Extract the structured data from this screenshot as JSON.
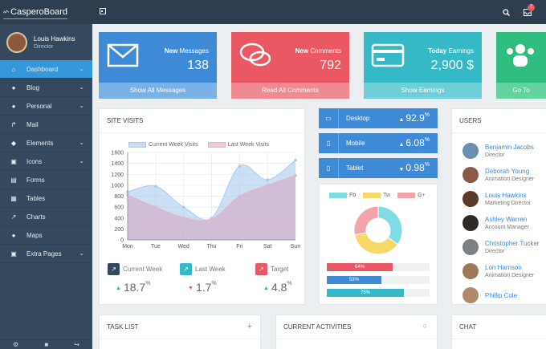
{
  "app": {
    "logo": "CasperoBoard",
    "notif_count": "7"
  },
  "profile": {
    "name": "Louis Hawkins",
    "role": "Director"
  },
  "nav": [
    {
      "label": "Dashboard",
      "icon": "home-icon",
      "glyph": "⌂",
      "chev": true,
      "active": true
    },
    {
      "label": "Blog",
      "icon": "comment-icon",
      "glyph": "●",
      "chev": true
    },
    {
      "label": "Personal",
      "icon": "user-icon",
      "glyph": "●",
      "chev": true
    },
    {
      "label": "Mail",
      "icon": "share-icon",
      "glyph": "↱",
      "chev": false
    },
    {
      "label": "Elements",
      "icon": "diamond-icon",
      "glyph": "◆",
      "chev": true
    },
    {
      "label": "Icons",
      "icon": "icons-icon",
      "glyph": "▣",
      "chev": true
    },
    {
      "label": "Forms",
      "icon": "forms-icon",
      "glyph": "▤",
      "chev": false
    },
    {
      "label": "Tables",
      "icon": "table-icon",
      "glyph": "▦",
      "chev": false
    },
    {
      "label": "Charts",
      "icon": "chart-icon",
      "glyph": "↗",
      "chev": false
    },
    {
      "label": "Maps",
      "icon": "map-marker-icon",
      "glyph": "●",
      "chev": false
    },
    {
      "label": "Extra Pages",
      "icon": "extra-pages-icon",
      "glyph": "▣",
      "chev": true
    }
  ],
  "stats": [
    {
      "key": "messages",
      "title_bold": "New",
      "title_rest": " Messages",
      "value": "138",
      "footer": "Show All Messages",
      "color": "#3e8ad6",
      "footer_color": "#79b0e6",
      "icon": "envelope-icon"
    },
    {
      "key": "comments",
      "title_bold": "New",
      "title_rest": " Comments",
      "value": "792",
      "footer": "Read All Comments",
      "color": "#ea5863",
      "footer_color": "#f08a92",
      "icon": "comments-icon"
    },
    {
      "key": "earnings",
      "title_bold": "Today",
      "title_rest": " Earnings",
      "value": "2,900 $",
      "footer": "Show Earnings",
      "color": "#36b9c6",
      "footer_color": "#6fcfd8",
      "icon": "credit-card-icon"
    },
    {
      "key": "users",
      "title_bold": "",
      "title_rest": "",
      "value": "",
      "footer": "Go To",
      "color": "#2ebd7f",
      "footer_color": "#62d2a0",
      "icon": "users-icon"
    }
  ],
  "site_visits": {
    "title": "SITE VISITS",
    "chart_data": {
      "type": "area",
      "categories": [
        "Mon",
        "Tue",
        "Wed",
        "Thu",
        "Fri",
        "Sat",
        "Sun"
      ],
      "yticks": [
        0,
        200,
        400,
        600,
        800,
        1000,
        1200,
        1400,
        1600
      ],
      "ylim": [
        0,
        1600
      ],
      "legend_position": "top",
      "series": [
        {
          "name": "Current Week Visits",
          "color": "#a9c9ef",
          "values": [
            880,
            980,
            600,
            400,
            1350,
            1100,
            1460
          ]
        },
        {
          "name": "Last Week Visits",
          "color": "#e7b4c2",
          "values": [
            820,
            600,
            410,
            380,
            800,
            1000,
            1180
          ]
        }
      ]
    }
  },
  "kpis": [
    {
      "label": "Current Week",
      "value": "18.7",
      "unit": "%",
      "trend": "▲",
      "trend_color": "#2ebd7f",
      "box_color": "#34495e",
      "glyph": "↗"
    },
    {
      "label": "Last Week",
      "value": "1.7",
      "unit": "%",
      "trend": "▼",
      "trend_color": "#ea5863",
      "box_color": "#36b9c6",
      "glyph": "↗"
    },
    {
      "label": "Target",
      "value": "4.8",
      "unit": "%",
      "trend": "▲",
      "trend_color": "#2ebd7f",
      "box_color": "#ea5863",
      "glyph": "↗"
    }
  ],
  "devices": [
    {
      "label": "Desktop",
      "value": "92.9",
      "unit": "%",
      "trend": "▲",
      "icon": "desktop-icon",
      "glyph": "▭"
    },
    {
      "label": "Mobile",
      "value": "6.08",
      "unit": "%",
      "trend": "▲",
      "icon": "mobile-icon",
      "glyph": "▯"
    },
    {
      "label": "Tablet",
      "value": "0.98",
      "unit": "%",
      "trend": "▼",
      "icon": "tablet-icon",
      "glyph": "▯"
    }
  ],
  "social": {
    "chart_data": {
      "type": "pie",
      "categories": [
        "Fb",
        "Tw",
        "G+"
      ],
      "values": [
        35,
        37,
        28
      ],
      "colors": [
        "#7fdbe4",
        "#f6d869",
        "#f4a3ab"
      ],
      "legend_position": "top"
    },
    "bars": [
      {
        "label": "64%",
        "value": 64,
        "color": "#ea5863"
      },
      {
        "label": "53%",
        "value": 53,
        "color": "#3e8ad6"
      },
      {
        "label": "75%",
        "value": 75,
        "color": "#36b9c6"
      }
    ]
  },
  "users": {
    "title": "USERS",
    "list": [
      {
        "name": "Benjamin Jacobs",
        "role": "Director",
        "color": "#6b8fb0"
      },
      {
        "name": "Deborah Young",
        "role": "Animation Designer",
        "color": "#8a5a45"
      },
      {
        "name": "Louis Hawkins",
        "role": "Marketing Director",
        "color": "#5b3a29"
      },
      {
        "name": "Ashley Warren",
        "role": "Account Manager",
        "color": "#2e2a28"
      },
      {
        "name": "Christopher Tucker",
        "role": "Director",
        "color": "#7c7f83"
      },
      {
        "name": "Lon Harrison",
        "role": "Animation Designer",
        "color": "#9b7a58"
      },
      {
        "name": "Phillip Cole",
        "role": "",
        "color": "#b08a6b"
      }
    ]
  },
  "bottom": {
    "task_list": "TASK LIST",
    "current_activities": "CURRENT ACTIVITIES",
    "chat": "CHAT",
    "add_glyph": "+",
    "circle_glyph": "○"
  }
}
